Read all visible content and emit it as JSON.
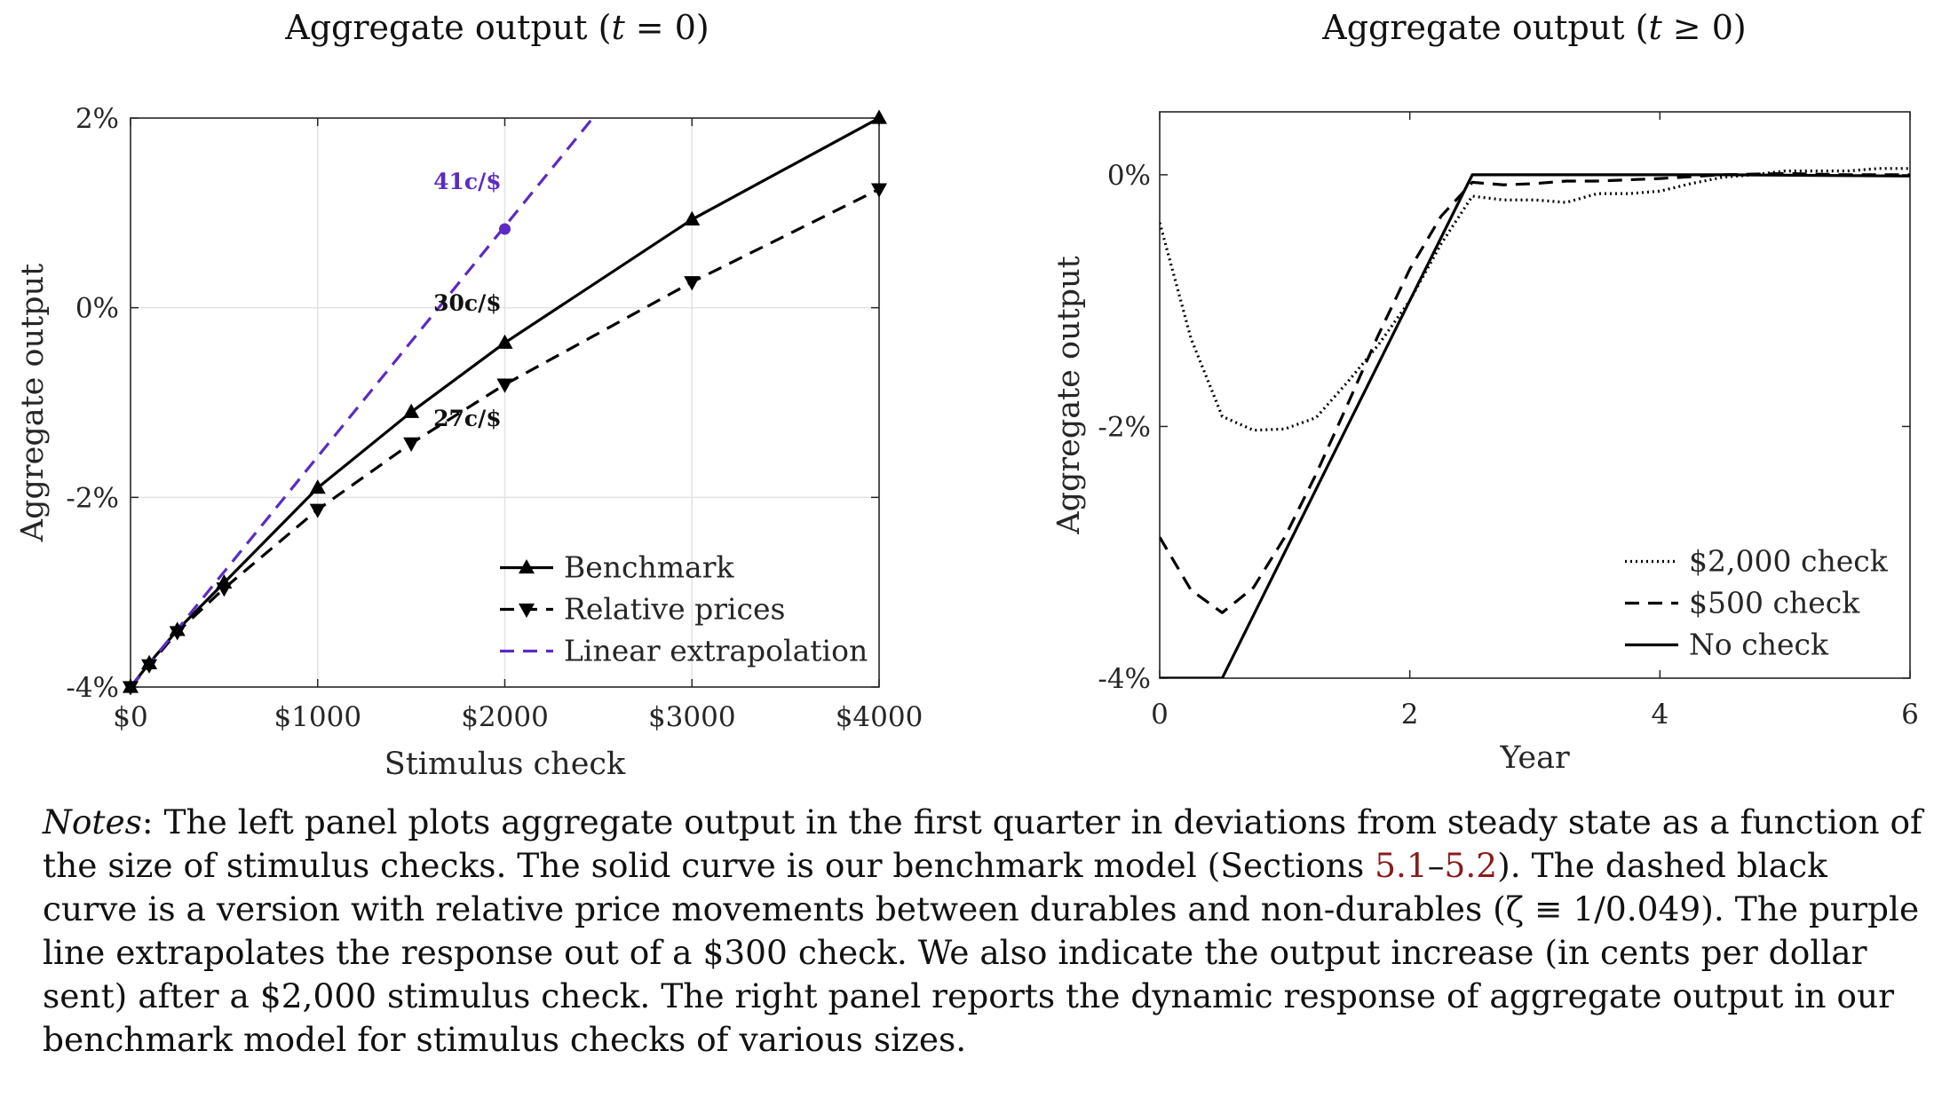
{
  "chart_data": [
    {
      "type": "line",
      "title": "Aggregate output (t = 0)",
      "title_parts": [
        "Aggregate output (",
        "t",
        " = 0)"
      ],
      "xlabel": "Stimulus check",
      "ylabel": "Aggregate output",
      "xlim": [
        0,
        4000
      ],
      "ylim": [
        -4,
        2
      ],
      "xticks": [
        0,
        1000,
        2000,
        3000,
        4000
      ],
      "xtick_labels": [
        "$0",
        "$1000",
        "$2000",
        "$3000",
        "$4000"
      ],
      "yticks": [
        -4,
        -2,
        0,
        2
      ],
      "ytick_labels": [
        "-4%",
        "-2%",
        "0%",
        "2%"
      ],
      "grid": true,
      "legend_placement": "bottom-right",
      "series": [
        {
          "name": "Benchmark",
          "color": "#000000",
          "dash": "solid",
          "marker": "triangle-up",
          "x": [
            0,
            100,
            250,
            500,
            1000,
            1500,
            2000,
            3000,
            4000
          ],
          "y": [
            -4.0,
            -3.75,
            -3.4,
            -2.9,
            -1.9,
            -1.1,
            -0.37,
            0.93,
            2.0
          ]
        },
        {
          "name": "Relative prices",
          "color": "#000000",
          "dash": "dashed",
          "marker": "triangle-down",
          "x": [
            0,
            100,
            250,
            500,
            1000,
            1500,
            2000,
            3000,
            4000
          ],
          "y": [
            -4.0,
            -3.77,
            -3.42,
            -2.96,
            -2.13,
            -1.43,
            -0.81,
            0.27,
            1.25
          ]
        },
        {
          "name": "Linear extrapolation",
          "color": "#5b2bc4",
          "dash": "dashed",
          "marker": "none",
          "x": [
            0,
            2470
          ],
          "y": [
            -4.0,
            2.0
          ]
        }
      ],
      "point_marker": {
        "x": 2000,
        "y": 0.83,
        "color": "#5b2bc4"
      },
      "annotations": [
        {
          "text": "41c/$",
          "x": 1800,
          "y": 1.25,
          "color": "#5b2bc4"
        },
        {
          "text": "30c/$",
          "x": 1800,
          "y": -0.03,
          "color": "#111111"
        },
        {
          "text": "27c/$",
          "x": 1800,
          "y": -1.25,
          "color": "#111111"
        }
      ]
    },
    {
      "type": "line",
      "title": "Aggregate output (t ≥ 0)",
      "title_parts": [
        "Aggregate output (",
        "t",
        " ≥ 0)"
      ],
      "xlabel": "Year",
      "ylabel": "Aggregate output",
      "xlim": [
        0,
        6
      ],
      "ylim": [
        -4,
        0.5
      ],
      "xticks": [
        0,
        2,
        4,
        6
      ],
      "xtick_labels": [
        "0",
        "2",
        "4",
        "6"
      ],
      "yticks": [
        -4,
        -2,
        0
      ],
      "ytick_labels": [
        "-4%",
        "-2%",
        "0%"
      ],
      "grid": false,
      "legend_placement": "bottom-right",
      "series": [
        {
          "name": "$2,000 check",
          "color": "#000000",
          "dash": "dotted",
          "x": [
            0,
            0.25,
            0.5,
            0.75,
            1.0,
            1.25,
            1.5,
            1.75,
            2.0,
            2.25,
            2.5,
            2.75,
            3.0,
            3.25,
            3.5,
            3.75,
            4.0,
            4.25,
            4.5,
            4.75,
            5.0,
            5.25,
            5.5,
            5.75,
            6.0
          ],
          "y": [
            -0.38,
            -1.3,
            -1.92,
            -2.03,
            -2.02,
            -1.93,
            -1.65,
            -1.35,
            -1.0,
            -0.55,
            -0.17,
            -0.2,
            -0.2,
            -0.22,
            -0.15,
            -0.15,
            -0.13,
            -0.07,
            -0.02,
            0.0,
            0.03,
            0.03,
            0.03,
            0.05,
            0.05
          ]
        },
        {
          "name": "$500 check",
          "color": "#000000",
          "dash": "dashed",
          "x": [
            0,
            0.25,
            0.5,
            0.75,
            1.0,
            1.25,
            1.5,
            1.75,
            2.0,
            2.25,
            2.5,
            2.75,
            3.0,
            3.25,
            3.5,
            3.75,
            4.0,
            4.5,
            5.0,
            5.5,
            6.0
          ],
          "y": [
            -2.88,
            -3.3,
            -3.48,
            -3.28,
            -2.88,
            -2.38,
            -1.83,
            -1.27,
            -0.75,
            -0.33,
            -0.06,
            -0.08,
            -0.07,
            -0.05,
            -0.05,
            -0.04,
            -0.03,
            0.0,
            0.01,
            0.0,
            0.0
          ]
        },
        {
          "name": "No check",
          "color": "#000000",
          "dash": "solid",
          "x": [
            0,
            0.5,
            2.5,
            4.5,
            6.0
          ],
          "y": [
            -4.0,
            -4.0,
            0.0,
            0.0,
            -0.01
          ]
        }
      ]
    }
  ],
  "notes": {
    "lead": "Notes",
    "text1": ": The left panel plots aggregate output in the first quarter in deviations from steady state as a function of the size of stimulus checks. The solid curve is our benchmark model (Sections ",
    "ref_start": "5.1",
    "ref_sep": "–",
    "ref_end": "5.2",
    "text2": "). The dashed black curve is a version with relative price movements between durables and non-durables (ζ ≡ 1/0.049). The purple line extrapolates the response out of a $300 check. We also indicate the output increase (in cents per dollar sent) after a $2,000 stimulus check. The right panel reports the dynamic response of aggregate output in our benchmark model for stimulus checks of various sizes."
  }
}
